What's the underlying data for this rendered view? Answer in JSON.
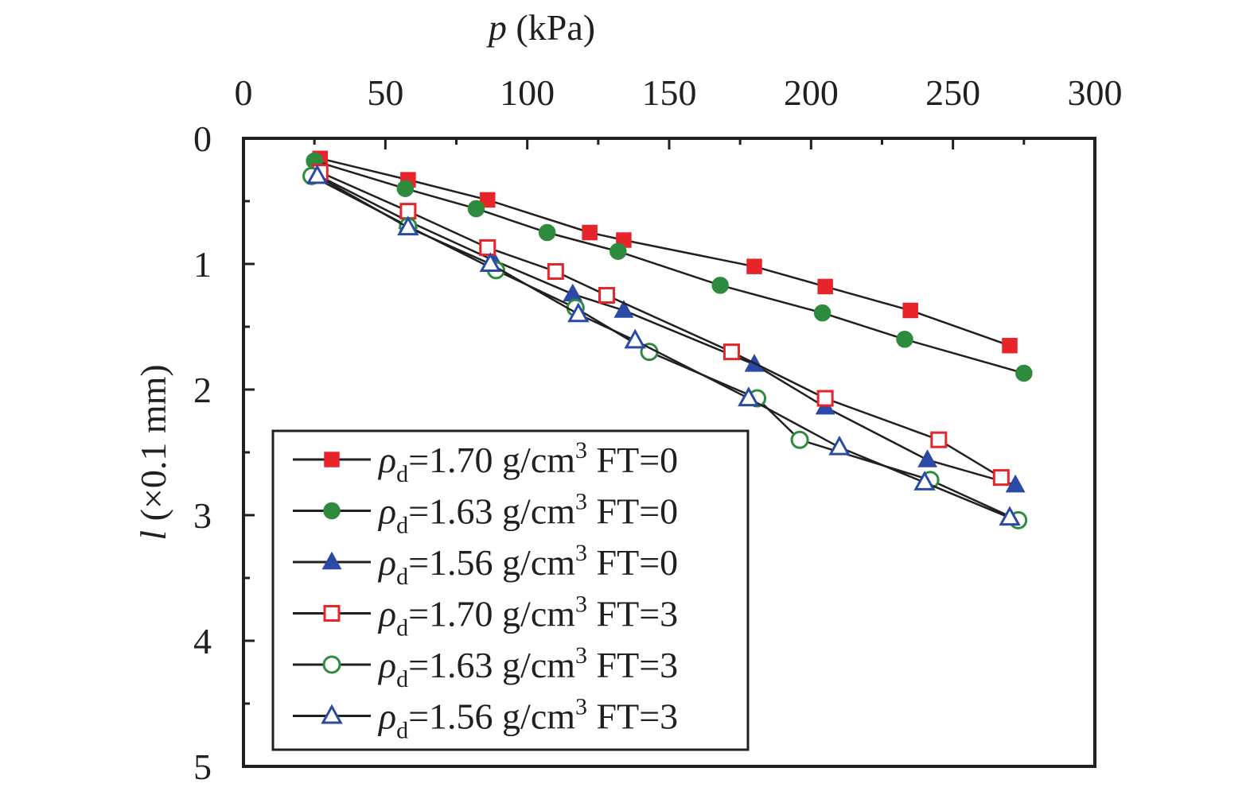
{
  "chart_data": {
    "type": "line",
    "xlabel_var": "p",
    "xlabel_unit": " (kPa)",
    "ylabel_var": "l",
    "ylabel_unit": " (×0.1 mm)",
    "x_axis_position": "top",
    "y_axis_inverted": true,
    "xlim": [
      0,
      300
    ],
    "ylim": [
      0,
      5
    ],
    "xticks": [
      0,
      50,
      100,
      150,
      200,
      250,
      300
    ],
    "yticks": [
      0,
      1,
      2,
      3,
      4,
      5
    ],
    "grid": false,
    "legend_position": "bottom-left",
    "series": [
      {
        "name_prefix": "ρ",
        "name_sub": "d",
        "name_mid": "=1.70 g/cm",
        "name_sup": "3",
        "name_suffix": " FT=0",
        "marker": "square",
        "filled": true,
        "color": "#e8242b",
        "x": [
          27,
          58,
          86,
          122,
          134,
          180,
          205,
          235,
          270
        ],
        "y": [
          0.16,
          0.33,
          0.49,
          0.75,
          0.81,
          1.02,
          1.18,
          1.37,
          1.65
        ]
      },
      {
        "name_prefix": "ρ",
        "name_sub": "d",
        "name_mid": "=1.63 g/cm",
        "name_sup": "3",
        "name_suffix": " FT=0",
        "marker": "circle",
        "filled": true,
        "color": "#2e8b3e",
        "x": [
          25,
          57,
          82,
          107,
          132,
          168,
          204,
          233,
          275
        ],
        "y": [
          0.18,
          0.4,
          0.56,
          0.75,
          0.9,
          1.17,
          1.39,
          1.6,
          1.87
        ]
      },
      {
        "name_prefix": "ρ",
        "name_sub": "d",
        "name_mid": "=1.56 g/cm",
        "name_sup": "3",
        "name_suffix": " FT=0",
        "marker": "triangle",
        "filled": true,
        "color": "#2b4aa6",
        "x": [
          25,
          58,
          88,
          116,
          134,
          180,
          205,
          241,
          272
        ],
        "y": [
          0.28,
          0.66,
          0.97,
          1.24,
          1.37,
          1.8,
          2.14,
          2.56,
          2.76
        ]
      },
      {
        "name_prefix": "ρ",
        "name_sub": "d",
        "name_mid": "=1.70 g/cm",
        "name_sup": "3",
        "name_suffix": " FT=3",
        "marker": "square",
        "filled": false,
        "color": "#e8242b",
        "x": [
          27,
          58,
          86,
          110,
          128,
          172,
          205,
          245,
          267
        ],
        "y": [
          0.27,
          0.58,
          0.87,
          1.06,
          1.25,
          1.7,
          2.07,
          2.4,
          2.7
        ]
      },
      {
        "name_prefix": "ρ",
        "name_sub": "d",
        "name_mid": "=1.63 g/cm",
        "name_sup": "3",
        "name_suffix": " FT=3",
        "marker": "circle",
        "filled": false,
        "color": "#2e8b3e",
        "x": [
          24,
          58,
          89,
          117,
          143,
          181,
          196,
          242,
          273
        ],
        "y": [
          0.3,
          0.7,
          1.05,
          1.35,
          1.7,
          2.07,
          2.4,
          2.72,
          3.04
        ]
      },
      {
        "name_prefix": "ρ",
        "name_sub": "d",
        "name_mid": "=1.56 g/cm",
        "name_sup": "3",
        "name_suffix": " FT=3",
        "marker": "triangle",
        "filled": false,
        "color": "#2b4aa6",
        "x": [
          26,
          58,
          87,
          118,
          138,
          178,
          210,
          240,
          270
        ],
        "y": [
          0.3,
          0.71,
          1.0,
          1.4,
          1.61,
          2.07,
          2.46,
          2.74,
          3.02
        ]
      }
    ]
  }
}
